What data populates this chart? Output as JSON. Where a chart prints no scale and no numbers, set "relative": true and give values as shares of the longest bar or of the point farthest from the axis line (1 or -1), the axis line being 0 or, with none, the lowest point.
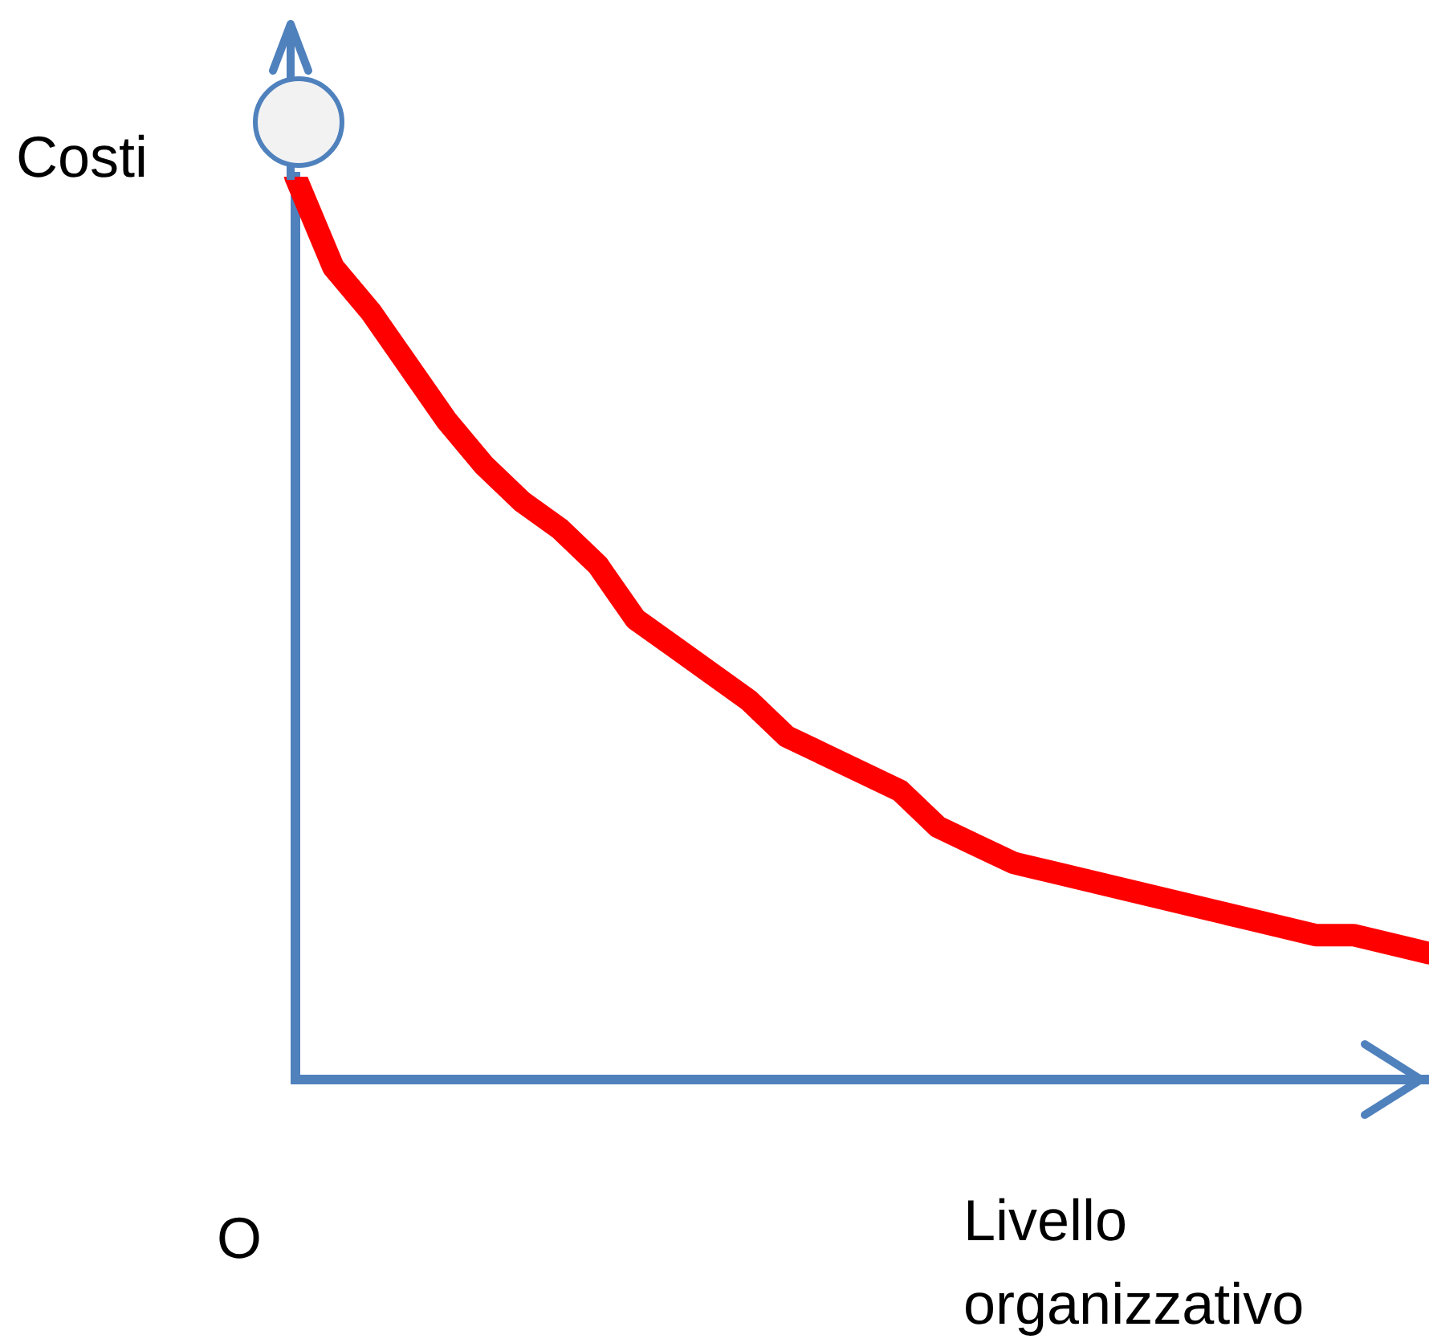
{
  "chart_data": {
    "type": "line",
    "relative": true,
    "ylabel": "Costi",
    "xlabel": "Livello organizzativo",
    "annotations": [
      "O"
    ],
    "marker": "none",
    "legend": false,
    "categories": [
      null,
      null,
      null,
      null,
      null,
      null,
      null,
      null,
      null,
      null,
      null,
      null,
      null,
      null,
      null,
      null,
      null,
      null,
      null,
      null,
      null,
      null,
      null,
      null,
      null,
      null,
      null,
      null,
      null,
      null,
      null
    ],
    "series": [
      {
        "color": "#ff0000",
        "values": [
          1,
          0.9,
          0.85,
          0.79,
          0.73,
          0.68,
          0.64,
          0.61,
          0.57,
          0.51,
          0.48,
          0.45,
          0.42,
          0.38,
          0.36,
          0.34,
          0.32,
          0.28,
          0.26,
          0.24,
          0.23,
          0.22,
          0.21,
          0.2,
          0.19,
          0.18,
          0.17,
          0.16,
          0.16,
          0.15,
          0.14
        ]
      }
    ]
  }
}
